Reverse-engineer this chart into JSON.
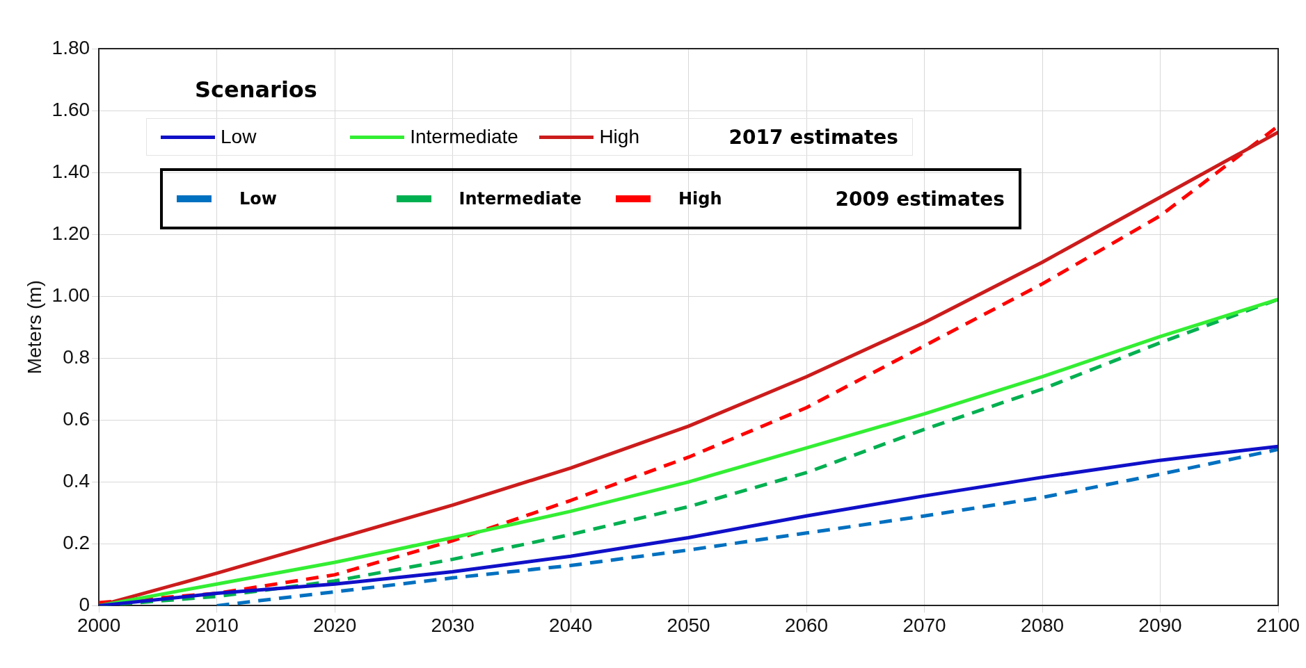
{
  "chart_data": {
    "type": "line",
    "ylabel": "Meters (m)",
    "legend_title": "Scenarios",
    "legend": "top left",
    "grid": true,
    "marker": "none",
    "x": [
      2000,
      2010,
      2020,
      2030,
      2040,
      2050,
      2060,
      2070,
      2080,
      2090,
      2100
    ],
    "xlim": [
      2000,
      2100
    ],
    "xticks": [
      2000,
      2010,
      2020,
      2030,
      2040,
      2050,
      2060,
      2070,
      2080,
      2090,
      2100
    ],
    "ylim": [
      0,
      1.8
    ],
    "yticks": [
      0,
      0.2,
      0.4,
      0.6,
      0.8,
      {
        "value": 1.0,
        "label": "1.00"
      },
      {
        "value": 1.2,
        "label": "1.20"
      },
      {
        "value": 1.4,
        "label": "1.40"
      },
      {
        "value": 1.6,
        "label": "1.60"
      },
      {
        "value": 1.8,
        "label": "1.80"
      }
    ],
    "annotations": [
      "2017 estimates",
      "2009 estimates"
    ],
    "series": [
      {
        "name": "Low",
        "color": "#1010c8",
        "line_style": "solid",
        "values": [
          0,
          0.04,
          0.07,
          0.11,
          0.16,
          0.22,
          0.29,
          0.355,
          0.415,
          0.47,
          0.515
        ]
      },
      {
        "name": "Intermediate",
        "color": "#33ee33",
        "line_style": "solid",
        "values": [
          0,
          0.07,
          0.14,
          0.22,
          0.305,
          0.4,
          0.51,
          0.62,
          0.74,
          0.87,
          0.99
        ]
      },
      {
        "name": "High",
        "color": "#cc1c1c",
        "line_style": "solid",
        "values": [
          0,
          0.105,
          0.215,
          0.325,
          0.445,
          0.58,
          0.74,
          0.915,
          1.11,
          1.32,
          1.53
        ]
      },
      {
        "name": "Low",
        "color": "#0070c0",
        "line_style": "dashed",
        "values": [
          null,
          0,
          0.045,
          0.09,
          0.13,
          0.18,
          0.235,
          0.29,
          0.35,
          0.425,
          0.505
        ]
      },
      {
        "name": "Intermediate",
        "color": "#00b050",
        "line_style": "dashed",
        "values": [
          0,
          0.03,
          0.08,
          0.15,
          0.23,
          0.32,
          0.43,
          0.57,
          0.7,
          0.85,
          0.99
        ]
      },
      {
        "name": "High",
        "color": "#ff0000",
        "line_style": "dashed",
        "values": [
          0.01,
          0.04,
          0.1,
          0.21,
          0.34,
          0.48,
          0.64,
          0.84,
          1.04,
          1.26,
          1.55
        ]
      }
    ]
  }
}
